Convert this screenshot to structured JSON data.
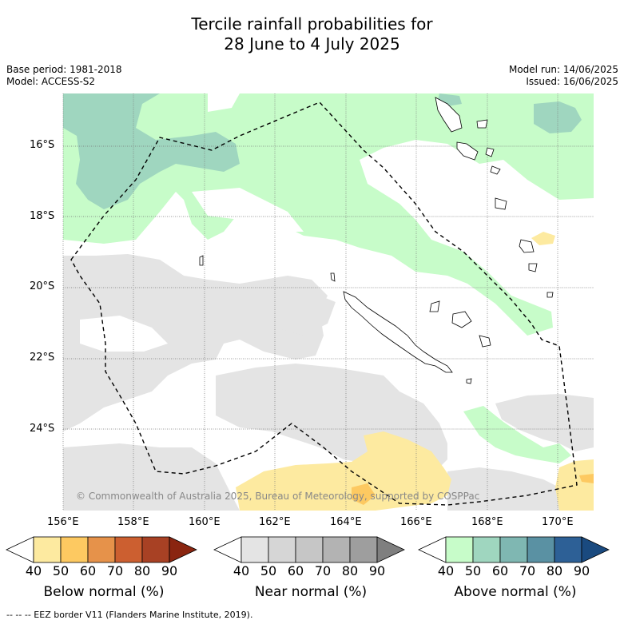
{
  "title_line1": "Tercile rainfall probabilities for",
  "title_line2": "28 June to 4 July 2025",
  "base_period": "Base period: 1981-2018",
  "model": "Model: ACCESS-S2",
  "model_run": "Model run: 14/06/2025",
  "issued": "Issued: 16/06/2025",
  "lat_labels": [
    "16°S",
    "18°S",
    "20°S",
    "22°S",
    "24°S"
  ],
  "lon_labels": [
    "156°E",
    "158°E",
    "160°E",
    "162°E",
    "164°E",
    "166°E",
    "168°E",
    "170°E"
  ],
  "copyright": "© Commonwealth of Australia 2025, Bureau of Meteorology, supported by COSPPac",
  "colorbars": [
    {
      "label": "Below normal (%)",
      "colors": [
        "#ffffff",
        "#fdeaa0",
        "#fdc961",
        "#e6924a",
        "#cc5f30",
        "#a84124",
        "#8a2510"
      ]
    },
    {
      "label": "Near normal (%)",
      "colors": [
        "#ffffff",
        "#e4e4e4",
        "#d6d6d6",
        "#c6c6c6",
        "#b3b3b3",
        "#9e9e9e",
        "#7f7f7f"
      ]
    },
    {
      "label": "Above normal (%)",
      "colors": [
        "#ffffff",
        "#c7fcc9",
        "#9fd6bf",
        "#7fb7b2",
        "#5a91a3",
        "#2d6096",
        "#1a4a7f"
      ]
    }
  ],
  "colorbar_ticks": [
    "40",
    "50",
    "60",
    "70",
    "80",
    "90"
  ],
  "footer": "-- -- -- EEZ border V11 (Flanders Marine Institute, 2019)."
}
